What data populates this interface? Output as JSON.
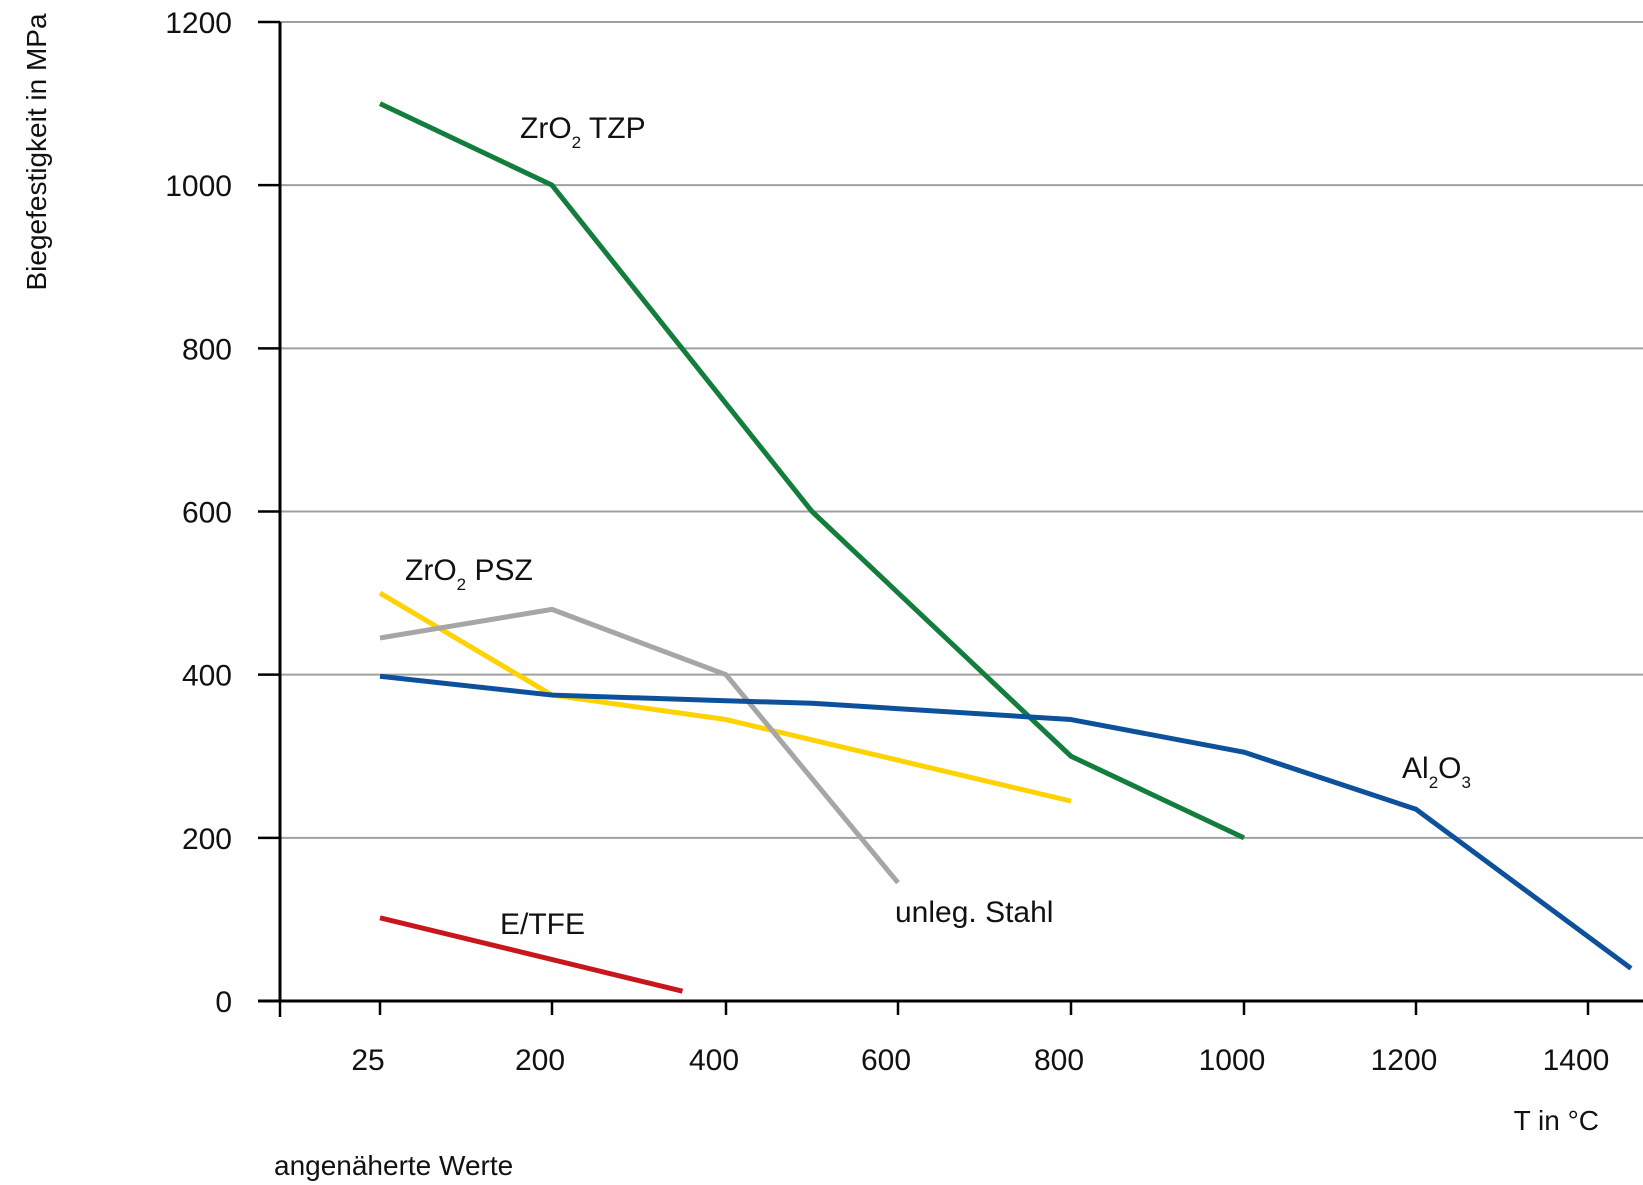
{
  "chart_data": {
    "type": "line",
    "ylabel": "Biegefestigkeit in MPa",
    "xlabel": "T in °C",
    "note": "angenäherte Werte",
    "x_ticks": [
      "25",
      "200",
      "400",
      "600",
      "800",
      "1000",
      "1200",
      "1400"
    ],
    "y_ticks": [
      "0",
      "200",
      "400",
      "600",
      "800",
      "1000",
      "1200"
    ],
    "ylim": [
      0,
      1200
    ],
    "grid": true,
    "series": [
      {
        "name": "ZrO2 TZP",
        "label_main": "ZrO",
        "label_sub": "2",
        "label_tail": " TZP",
        "color": "#137d3c",
        "points": [
          [
            25,
            1100
          ],
          [
            200,
            1000
          ],
          [
            500,
            600
          ],
          [
            800,
            300
          ],
          [
            1000,
            200
          ]
        ]
      },
      {
        "name": "ZrO2 PSZ",
        "label_main": "ZrO",
        "label_sub": "2",
        "label_tail": " PSZ",
        "color": "#ffd200",
        "points": [
          [
            25,
            500
          ],
          [
            200,
            375
          ],
          [
            400,
            345
          ],
          [
            800,
            245
          ]
        ]
      },
      {
        "name": "unleg. Stahl",
        "label_main": "unleg. Stahl",
        "color": "#a6a6a6",
        "points": [
          [
            25,
            445
          ],
          [
            200,
            480
          ],
          [
            400,
            400
          ],
          [
            600,
            145
          ]
        ]
      },
      {
        "name": "Al2O3",
        "label_main": "Al",
        "label_sub": "2",
        "label_mid": "O",
        "label_sub2": "3",
        "color": "#0d519c",
        "points": [
          [
            25,
            398
          ],
          [
            200,
            375
          ],
          [
            400,
            368
          ],
          [
            500,
            365
          ],
          [
            800,
            345
          ],
          [
            1000,
            305
          ],
          [
            1200,
            235
          ],
          [
            1450,
            40
          ]
        ]
      },
      {
        "name": "E/TFE",
        "label_main": "E/TFE",
        "color": "#c8161d",
        "points": [
          [
            25,
            102
          ],
          [
            350,
            12
          ]
        ]
      }
    ]
  }
}
